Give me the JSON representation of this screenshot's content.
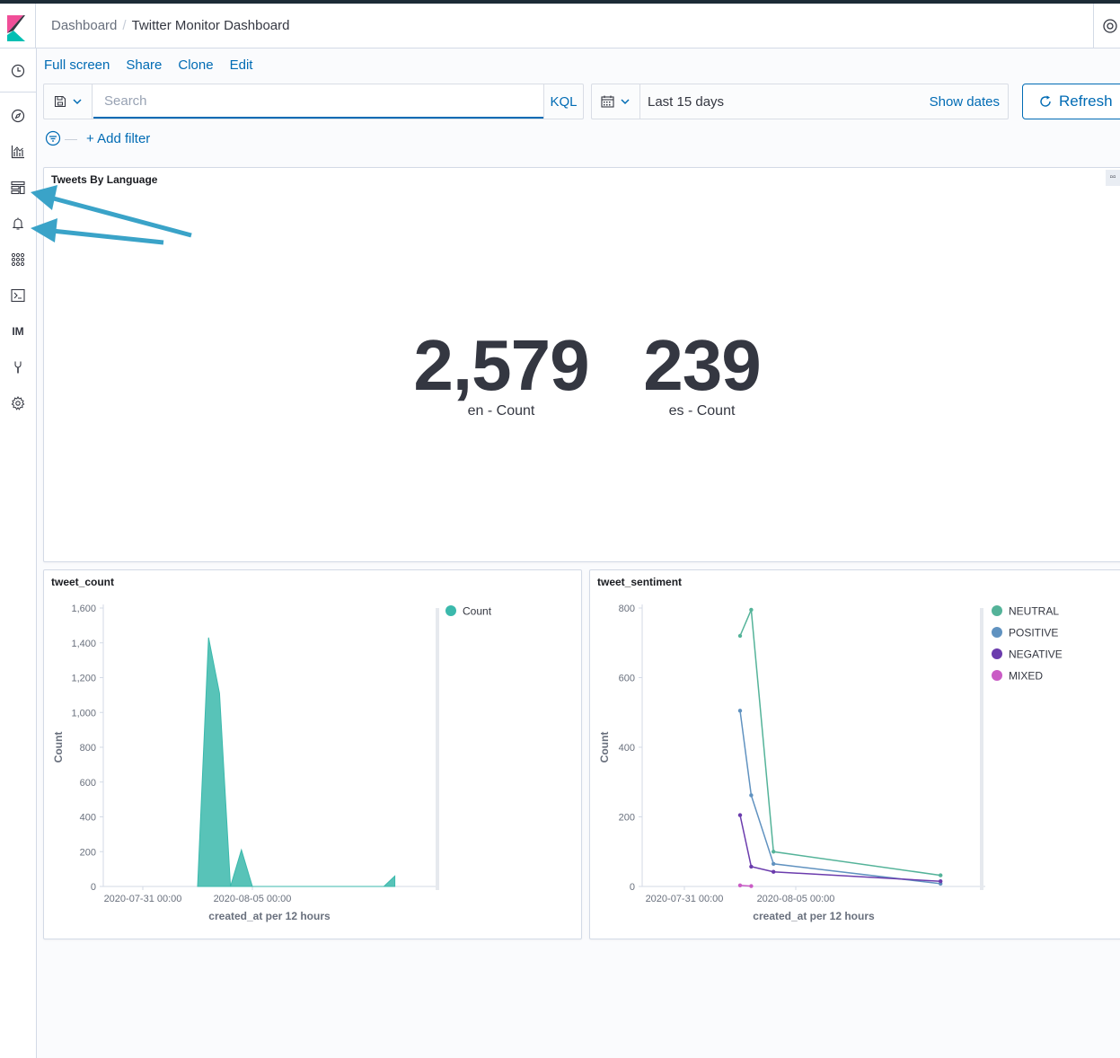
{
  "header": {
    "breadcrumbs": [
      "Dashboard",
      "Twitter Monitor Dashboard"
    ]
  },
  "sidebar": {
    "items": [
      {
        "name": "recently-viewed",
        "icon": "clock-icon"
      },
      {
        "name": "discover",
        "icon": "compass-icon"
      },
      {
        "name": "visualize",
        "icon": "chart-icon"
      },
      {
        "name": "dashboard",
        "icon": "dashboard-icon"
      },
      {
        "name": "alerting",
        "icon": "bell-icon"
      },
      {
        "name": "apps",
        "icon": "grid-icon"
      },
      {
        "name": "dev-tools",
        "icon": "terminal-icon"
      },
      {
        "name": "index-management",
        "icon": "text-badge",
        "text": "IM"
      },
      {
        "name": "monitoring",
        "icon": "wrench-icon"
      },
      {
        "name": "management",
        "icon": "gear-icon"
      }
    ]
  },
  "top_menu": {
    "full_screen": "Full screen",
    "share": "Share",
    "clone": "Clone",
    "edit": "Edit"
  },
  "query": {
    "placeholder": "Search",
    "language": "KQL"
  },
  "time": {
    "range": "Last 15 days",
    "show_dates": "Show dates",
    "refresh": "Refresh"
  },
  "filters": {
    "add_filter": "+ Add filter"
  },
  "panels": {
    "tweets_by_language": {
      "title": "Tweets By Language",
      "metrics": [
        {
          "value": "2,579",
          "label": "en - Count"
        },
        {
          "value": "239",
          "label": "es - Count"
        }
      ]
    },
    "tweet_count": {
      "title": "tweet_count"
    },
    "tweet_sentiment": {
      "title": "tweet_sentiment"
    }
  },
  "colors": {
    "accent": "#006bb4",
    "arrow": "#3aa3c8",
    "count": "#3bb9ac",
    "neutral": "#54b399",
    "positive": "#6092c0",
    "negative": "#6b3cad",
    "mixed": "#ca5cc5"
  },
  "chart_data": [
    {
      "type": "area",
      "title": "tweet_count",
      "xlabel": "created_at per 12 hours",
      "ylabel": "Count",
      "x_ticks": [
        "2020-07-31 00:00",
        "2020-08-05 00:00"
      ],
      "y_ticks": [
        "0",
        "200",
        "400",
        "600",
        "800",
        "1,000",
        "1,200",
        "1,400",
        "1,600"
      ],
      "ylim": [
        0,
        1600
      ],
      "legend": "right",
      "series": [
        {
          "name": "Count",
          "color": "#3bb9ac",
          "points": [
            [
              "2020-08-02 12:00",
              0
            ],
            [
              "2020-08-03 00:00",
              1430
            ],
            [
              "2020-08-03 12:00",
              1110
            ],
            [
              "2020-08-04 00:00",
              0
            ],
            [
              "2020-08-04 12:00",
              210
            ],
            [
              "2020-08-05 00:00",
              0
            ],
            [
              "2020-08-11 00:00",
              0
            ],
            [
              "2020-08-11 12:00",
              60
            ]
          ]
        }
      ]
    },
    {
      "type": "line",
      "title": "tweet_sentiment",
      "xlabel": "created_at per 12 hours",
      "ylabel": "Count",
      "x_ticks": [
        "2020-07-31 00:00",
        "2020-08-05 00:00"
      ],
      "y_ticks": [
        "0",
        "200",
        "400",
        "600",
        "800"
      ],
      "ylim": [
        0,
        800
      ],
      "legend": "right",
      "series": [
        {
          "name": "NEUTRAL",
          "color": "#54b399",
          "points": [
            [
              "2020-08-02 12:00",
              720
            ],
            [
              "2020-08-03 00:00",
              795
            ],
            [
              "2020-08-04 00:00",
              100
            ],
            [
              "2020-08-11 12:00",
              32
            ]
          ]
        },
        {
          "name": "POSITIVE",
          "color": "#6092c0",
          "points": [
            [
              "2020-08-02 12:00",
              505
            ],
            [
              "2020-08-03 00:00",
              262
            ],
            [
              "2020-08-04 00:00",
              65
            ],
            [
              "2020-08-11 12:00",
              8
            ]
          ]
        },
        {
          "name": "NEGATIVE",
          "color": "#6b3cad",
          "points": [
            [
              "2020-08-02 12:00",
              205
            ],
            [
              "2020-08-03 00:00",
              57
            ],
            [
              "2020-08-04 00:00",
              42
            ],
            [
              "2020-08-11 12:00",
              15
            ]
          ]
        },
        {
          "name": "MIXED",
          "color": "#ca5cc5",
          "points": [
            [
              "2020-08-02 12:00",
              3
            ],
            [
              "2020-08-03 00:00",
              1
            ]
          ]
        }
      ]
    }
  ]
}
